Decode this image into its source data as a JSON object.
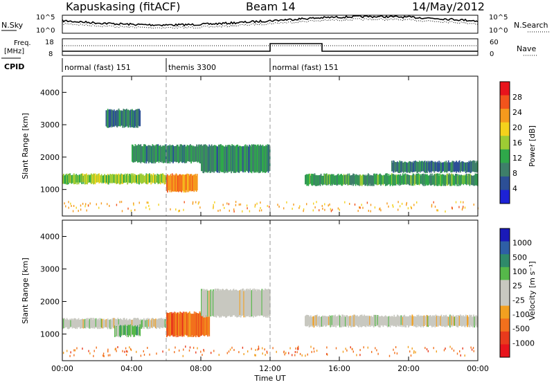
{
  "header": {
    "station": "Kapuskasing (fitACF)",
    "beam": "Beam 14",
    "date": "14/May/2012"
  },
  "top_panels": {
    "noise_sky_label": "N.Sky",
    "noise_search_label": "N.Search",
    "noise_ticks_left": [
      "10^5",
      "10^0"
    ],
    "noise_ticks_right": [
      "10^5",
      "10^0"
    ],
    "freq_label": "Freq.",
    "freq_unit": "[MHz]",
    "freq_ticks": [
      "18",
      "8"
    ],
    "nave_label": "Nave",
    "nave_ticks": [
      "60",
      "0"
    ],
    "cpid_label": "CPID",
    "cpid_segments": [
      {
        "label": "normal (fast) 151",
        "start": 0,
        "end": 6
      },
      {
        "label": "themis 3300",
        "start": 6,
        "end": 12
      },
      {
        "label": "normal (fast) 151",
        "start": 12,
        "end": 24
      }
    ]
  },
  "colorbars": {
    "power": {
      "label": "Power [dB]",
      "ticks": [
        "28",
        "24",
        "20",
        "16",
        "12",
        "8",
        "4"
      ],
      "colors": [
        "#e8141c",
        "#f2541c",
        "#f59a1d",
        "#f4d21c",
        "#9dcc34",
        "#2fa84a",
        "#3e7f6a",
        "#2c4f96",
        "#1d22d6"
      ]
    },
    "velocity": {
      "label": "Velocity [m s⁻¹]",
      "ticks": [
        "1000",
        "500",
        "100",
        "25",
        "-25",
        "-100",
        "-500",
        "-1000"
      ],
      "colors": [
        "#1a1ab8",
        "#2e5fa6",
        "#2f8a6a",
        "#56b84a",
        "#c8c8c0",
        "#c8c8c0",
        "#f2a020",
        "#f2701c",
        "#e83a1c",
        "#e8141c"
      ]
    }
  },
  "chart_data": [
    {
      "type": "heatmap",
      "name": "power",
      "ylabel": "Slant Range [km]",
      "yticks": [
        "4000",
        "3000",
        "2000",
        "1000"
      ],
      "ylim": [
        180,
        4500
      ],
      "xlim": [
        0,
        24
      ],
      "bands": [
        {
          "x": [
            0.0,
            6.0
          ],
          "y": [
            1150,
            1500
          ],
          "level": 14
        },
        {
          "x": [
            2.5,
            4.5
          ],
          "y": [
            2900,
            3500
          ],
          "level": 6
        },
        {
          "x": [
            4.0,
            8.0
          ],
          "y": [
            1800,
            2400
          ],
          "level": 8
        },
        {
          "x": [
            6.0,
            7.8
          ],
          "y": [
            900,
            1500
          ],
          "level": 22
        },
        {
          "x": [
            8.0,
            12.0
          ],
          "y": [
            1500,
            2400
          ],
          "level": 8
        },
        {
          "x": [
            14.0,
            24.0
          ],
          "y": [
            1100,
            1500
          ],
          "level": 10
        },
        {
          "x": [
            19.0,
            24.0
          ],
          "y": [
            1500,
            1900
          ],
          "level": 6
        }
      ]
    },
    {
      "type": "heatmap",
      "name": "velocity",
      "ylabel": "Slant Range [km]",
      "xlabel": "Time UT",
      "yticks": [
        "4000",
        "3000",
        "2000",
        "1000"
      ],
      "ylim": [
        180,
        4500
      ],
      "xlim": [
        0,
        24
      ],
      "xticks": [
        "00:00",
        "04:00",
        "08:00",
        "12:00",
        "16:00",
        "20:00",
        "00:00"
      ],
      "bands": [
        {
          "x": [
            0.0,
            6.0
          ],
          "y": [
            1150,
            1500
          ],
          "level": 0
        },
        {
          "x": [
            3.0,
            4.5
          ],
          "y": [
            900,
            1300
          ],
          "level": 300
        },
        {
          "x": [
            6.0,
            8.5
          ],
          "y": [
            900,
            1700
          ],
          "level": -200
        },
        {
          "x": [
            8.0,
            12.0
          ],
          "y": [
            1500,
            2400
          ],
          "level": 0
        },
        {
          "x": [
            14.0,
            24.0
          ],
          "y": [
            1200,
            1600
          ],
          "level": 0
        }
      ]
    }
  ]
}
